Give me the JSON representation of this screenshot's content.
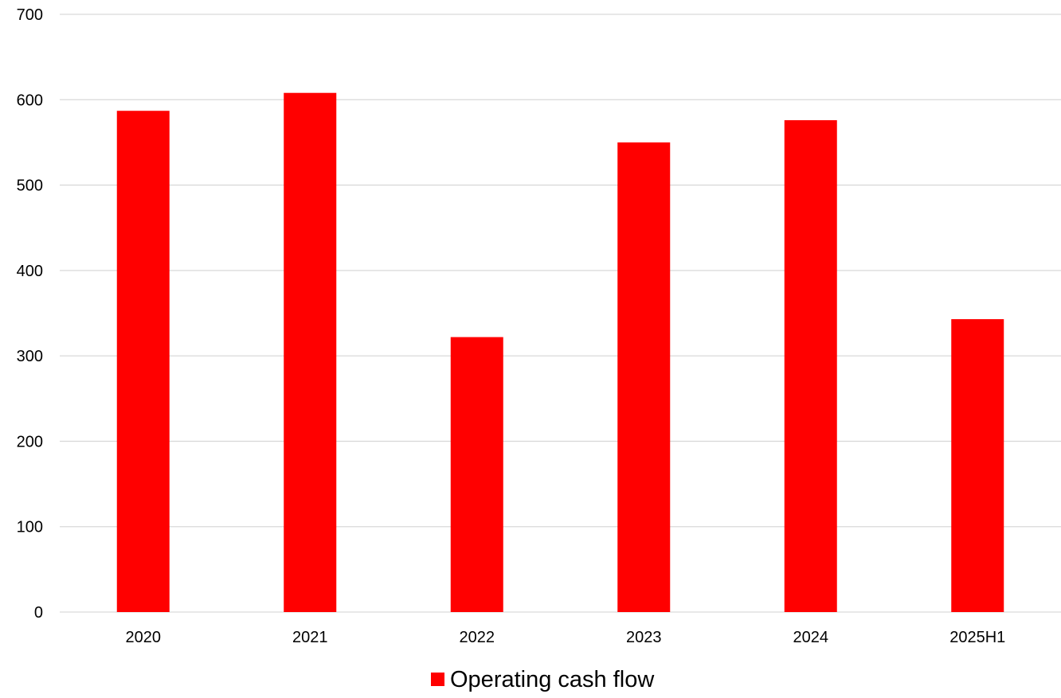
{
  "chart_data": {
    "type": "bar",
    "categories": [
      "2020",
      "2021",
      "2022",
      "2023",
      "2024",
      "2025H1"
    ],
    "series": [
      {
        "name": "Operating cash flow",
        "values": [
          587,
          608,
          322,
          550,
          576,
          343
        ],
        "color": "#ff0000"
      }
    ],
    "title": "",
    "xlabel": "",
    "ylabel": "",
    "ylim": [
      0,
      700
    ],
    "yticks": [
      "0",
      "100",
      "200",
      "300",
      "400",
      "500",
      "600",
      "700"
    ],
    "grid": true,
    "legend_position": "bottom-center",
    "colors": {
      "bar": "#ff0000",
      "grid": "#d9d9d9",
      "text": "#000000"
    }
  }
}
